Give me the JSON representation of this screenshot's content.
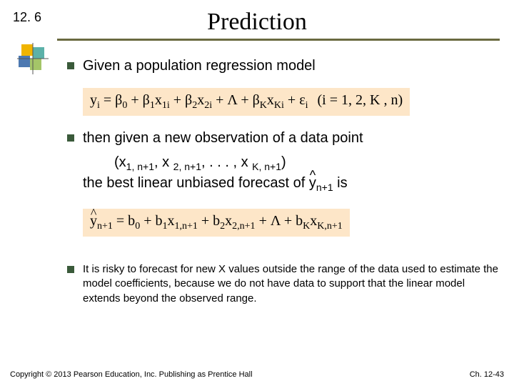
{
  "header": {
    "section": "12. 6",
    "title": "Prediction"
  },
  "colors": {
    "rule": "#6a6a40",
    "bullet": "#3a5a3a",
    "eq_bg": "#fde6c8",
    "icon_yellow": "#f0b400",
    "icon_teal": "#4aa8a0",
    "icon_blue": "#3a6aa8",
    "icon_green": "#9abf58",
    "background": "#ffffff"
  },
  "bullets": {
    "b1": "Given a population regression model",
    "b2": "then given a new observation of a data point",
    "b3": "It is risky to forecast for new X values outside the range of the data used to estimate the model coefficients, because we do not have data to support that the linear model extends beyond the observed range."
  },
  "equations": {
    "eq1_main": "y<sub>i</sub> = β<sub>0</sub> + β<sub>1</sub>x<sub>1i</sub> + β<sub>2</sub>x<sub>2i</sub> + Λ + β<sub>K</sub>x<sub>Ki</sub> + ε<sub>i</sub>",
    "eq1_suffix": "(i = 1, 2, K , n)",
    "datapoint": "(x<sub>1, n+1</sub>, x <sub>2, n+1</sub>, . . . , x <sub>K, n+1</sub>)",
    "forecast_line_pre": "the best linear unbiased forecast of  ",
    "forecast_symbol": "y<sub>n+1</sub>",
    "forecast_line_post": " is",
    "eq2": "<span class=\"hat\">y</span><sub>n+1</sub> = b<sub>0</sub> + b<sub>1</sub>x<sub>1,n+1</sub> + b<sub>2</sub>x<sub>2,n+1</sub> + Λ + b<sub>K</sub>x<sub>K,n+1</sub>"
  },
  "footer": {
    "left": "Copyright © 2013 Pearson Education, Inc. Publishing as Prentice Hall",
    "right": "Ch. 12-43"
  }
}
